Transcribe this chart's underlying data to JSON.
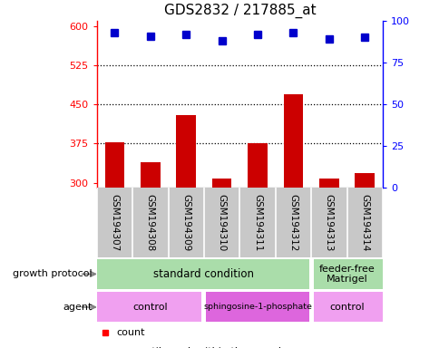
{
  "title": "GDS2832 / 217885_at",
  "samples": [
    "GSM194307",
    "GSM194308",
    "GSM194309",
    "GSM194310",
    "GSM194311",
    "GSM194312",
    "GSM194313",
    "GSM194314"
  ],
  "counts": [
    378,
    340,
    430,
    308,
    375,
    470,
    308,
    318
  ],
  "percentiles": [
    93,
    91,
    92,
    88,
    92,
    93,
    89,
    90
  ],
  "ylim_left": [
    290,
    610
  ],
  "ylim_right": [
    0,
    100
  ],
  "yticks_left": [
    300,
    375,
    450,
    525,
    600
  ],
  "yticks_right": [
    0,
    25,
    50,
    75,
    100
  ],
  "bar_color": "#cc0000",
  "scatter_color": "#0000cc",
  "bar_bottom": 290,
  "green_color": "#aaddaa",
  "light_pink": "#f0a0f0",
  "med_pink": "#dd66dd",
  "gray_bg": "#c8c8c8",
  "dotted_lines": [
    375,
    450,
    525
  ],
  "n_samples": 8,
  "std_cols": 6,
  "ctrl1_cols": 3,
  "sphingo_cols": 3,
  "ctrl2_cols": 2
}
